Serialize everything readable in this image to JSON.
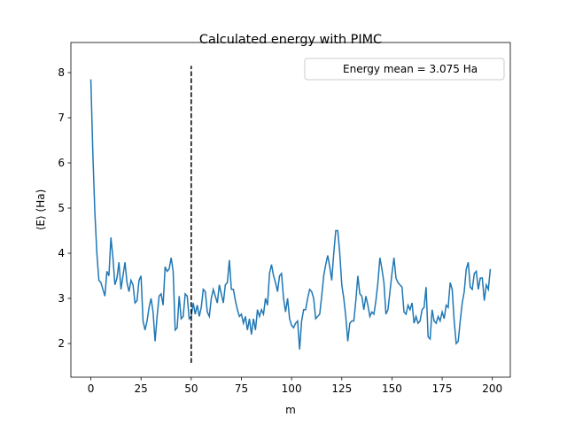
{
  "chart_data": {
    "type": "line",
    "title": "Calculated energy with PIMC",
    "xlabel": "m",
    "ylabel": "⟨E⟩ (Ha)",
    "x": [
      0,
      1,
      2,
      3,
      4,
      5,
      6,
      7,
      8,
      9,
      10,
      11,
      12,
      13,
      14,
      15,
      16,
      17,
      18,
      19,
      20,
      21,
      22,
      23,
      24,
      25,
      26,
      27,
      28,
      29,
      30,
      31,
      32,
      33,
      34,
      35,
      36,
      37,
      38,
      39,
      40,
      41,
      42,
      43,
      44,
      45,
      46,
      47,
      48,
      49,
      50,
      51,
      52,
      53,
      54,
      55,
      56,
      57,
      58,
      59,
      60,
      61,
      62,
      63,
      64,
      65,
      66,
      67,
      68,
      69,
      70,
      71,
      72,
      73,
      74,
      75,
      76,
      77,
      78,
      79,
      80,
      81,
      82,
      83,
      84,
      85,
      86,
      87,
      88,
      89,
      90,
      91,
      92,
      93,
      94,
      95,
      96,
      97,
      98,
      99,
      100,
      101,
      102,
      103,
      104,
      105,
      106,
      107,
      108,
      109,
      110,
      111,
      112,
      113,
      114,
      115,
      116,
      117,
      118,
      119,
      120,
      121,
      122,
      123,
      124,
      125,
      126,
      127,
      128,
      129,
      130,
      131,
      132,
      133,
      134,
      135,
      136,
      137,
      138,
      139,
      140,
      141,
      142,
      143,
      144,
      145,
      146,
      147,
      148,
      149,
      150,
      151,
      152,
      153,
      154,
      155,
      156,
      157,
      158,
      159,
      160,
      161,
      162,
      163,
      164,
      165,
      166,
      167,
      168,
      169,
      170,
      171,
      172,
      173,
      174,
      175,
      176,
      177,
      178,
      179,
      180,
      181,
      182,
      183,
      184,
      185,
      186,
      187,
      188,
      189,
      190,
      191,
      192,
      193,
      194,
      195,
      196,
      197,
      198,
      199
    ],
    "series": [
      {
        "color": "#1f77b4",
        "values": [
          7.85,
          6.2,
          4.9,
          4.0,
          3.4,
          3.35,
          3.2,
          3.05,
          3.6,
          3.5,
          4.35,
          3.9,
          3.3,
          3.45,
          3.8,
          3.2,
          3.5,
          3.8,
          3.35,
          3.15,
          3.4,
          3.3,
          2.9,
          2.95,
          3.4,
          3.5,
          2.5,
          2.3,
          2.5,
          2.8,
          3.0,
          2.7,
          2.05,
          2.6,
          3.05,
          3.1,
          2.85,
          3.7,
          3.6,
          3.65,
          3.9,
          3.6,
          2.3,
          2.35,
          3.05,
          2.55,
          2.6,
          3.1,
          3.05,
          2.55,
          2.6,
          2.9,
          2.65,
          2.85,
          2.6,
          2.8,
          3.2,
          3.15,
          2.7,
          2.6,
          3.0,
          3.2,
          3.05,
          2.9,
          3.3,
          3.1,
          2.9,
          3.3,
          3.35,
          3.85,
          3.2,
          3.2,
          2.95,
          2.75,
          2.6,
          2.65,
          2.45,
          2.6,
          2.3,
          2.55,
          2.2,
          2.55,
          2.3,
          2.75,
          2.6,
          2.75,
          2.65,
          3.0,
          2.85,
          3.55,
          3.75,
          3.5,
          3.35,
          3.15,
          3.5,
          3.55,
          3.0,
          2.7,
          3.0,
          2.55,
          2.4,
          2.35,
          2.45,
          2.5,
          1.87,
          2.5,
          2.75,
          2.75,
          3.0,
          3.2,
          3.15,
          3.0,
          2.55,
          2.6,
          2.65,
          3.05,
          3.5,
          3.75,
          3.95,
          3.7,
          3.4,
          4.0,
          4.5,
          4.5,
          4.0,
          3.3,
          3.0,
          2.6,
          2.05,
          2.45,
          2.5,
          2.5,
          2.95,
          3.5,
          3.1,
          3.05,
          2.75,
          3.05,
          2.85,
          2.6,
          2.7,
          2.65,
          2.95,
          3.35,
          3.9,
          3.65,
          3.35,
          2.65,
          2.75,
          3.15,
          3.55,
          3.9,
          3.45,
          3.35,
          3.3,
          3.25,
          2.7,
          2.65,
          2.85,
          2.75,
          2.9,
          2.45,
          2.6,
          2.45,
          2.5,
          2.75,
          2.8,
          3.25,
          2.15,
          2.1,
          2.75,
          2.5,
          2.45,
          2.6,
          2.5,
          2.7,
          2.55,
          2.85,
          2.8,
          3.35,
          3.2,
          2.5,
          2.0,
          2.05,
          2.5,
          2.9,
          3.15,
          3.65,
          3.8,
          3.25,
          3.2,
          3.55,
          3.6,
          3.2,
          3.45,
          3.45,
          2.95,
          3.3,
          3.2,
          3.65
        ]
      }
    ],
    "vline": {
      "x": 50,
      "ymin": 1.57,
      "ymax": 8.15,
      "color": "#000000"
    },
    "legend": {
      "label": "Energy mean = 3.075 Ha",
      "loc": "upper right"
    },
    "xlim": [
      -9.95,
      208.95
    ],
    "ylim": [
      1.255,
      8.667
    ],
    "xticks": [
      0,
      25,
      50,
      75,
      100,
      125,
      150,
      175,
      200
    ],
    "yticks": [
      2,
      3,
      4,
      5,
      6,
      7,
      8
    ]
  }
}
